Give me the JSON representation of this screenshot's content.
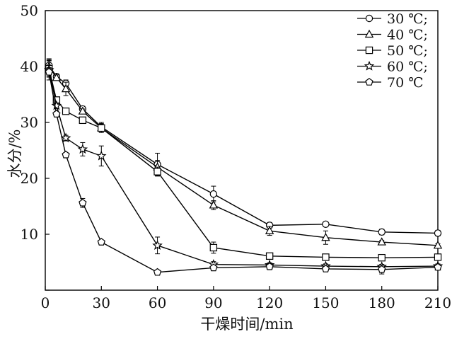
{
  "chart_data": {
    "type": "line",
    "title": "",
    "xlabel": "干燥时间/min",
    "ylabel": "水分/%",
    "xlim": [
      0,
      210
    ],
    "ylim": [
      0,
      50
    ],
    "xticks": [
      0,
      30,
      60,
      90,
      120,
      150,
      180,
      210
    ],
    "yticks": [
      0,
      10,
      20,
      30,
      40,
      50
    ],
    "grid": false,
    "legend_position": "top-right",
    "error_bars": true,
    "series": [
      {
        "name": "30 ℃;",
        "marker": "circle",
        "x": [
          2,
          6,
          11,
          20,
          30,
          60,
          90,
          120,
          150,
          180,
          210
        ],
        "y": [
          40.2,
          38.2,
          37.0,
          32.4,
          29.2,
          22.5,
          17.2,
          11.6,
          11.8,
          10.4,
          10.2
        ],
        "err": [
          1.2,
          0.5,
          0.6,
          0.5,
          0.8,
          2.0,
          1.4,
          0.5,
          0.3,
          0.5,
          0.5
        ]
      },
      {
        "name": "40 ℃;",
        "marker": "triangle",
        "x": [
          2,
          6,
          11,
          20,
          30,
          60,
          90,
          120,
          150,
          180,
          210
        ],
        "y": [
          40.0,
          38.0,
          36.0,
          32.0,
          29.0,
          22.0,
          15.2,
          10.6,
          9.4,
          8.6,
          8.0
        ],
        "err": [
          1.0,
          0.5,
          1.2,
          0.4,
          0.6,
          1.2,
          0.8,
          0.8,
          1.2,
          0.3,
          0.3
        ]
      },
      {
        "name": "50 ℃;",
        "marker": "square",
        "x": [
          2,
          6,
          11,
          20,
          30,
          60,
          90,
          120,
          150,
          180,
          210
        ],
        "y": [
          39.6,
          34.0,
          32.0,
          30.4,
          29.0,
          21.2,
          7.6,
          6.1,
          5.9,
          5.8,
          5.9
        ],
        "err": [
          1.5,
          0.5,
          0.5,
          0.5,
          0.8,
          0.8,
          1.0,
          0.4,
          0.3,
          0.3,
          0.3
        ]
      },
      {
        "name": "60 ℃;",
        "marker": "star",
        "x": [
          2,
          6,
          11,
          20,
          30,
          60,
          90,
          120,
          150,
          180,
          210
        ],
        "y": [
          39.4,
          33.0,
          27.2,
          25.2,
          24.0,
          8.0,
          4.6,
          4.5,
          4.3,
          4.2,
          4.3
        ],
        "err": [
          1.8,
          0.5,
          0.5,
          1.2,
          1.8,
          1.5,
          0.5,
          0.4,
          0.4,
          0.4,
          0.4
        ]
      },
      {
        "name": "70 ℃",
        "marker": "pentagon",
        "x": [
          2,
          6,
          11,
          20,
          30,
          60,
          90,
          120,
          150,
          180,
          210
        ],
        "y": [
          39.0,
          31.5,
          24.2,
          15.6,
          8.6,
          3.2,
          4.0,
          4.2,
          3.8,
          3.7,
          4.1
        ],
        "err": [
          0.8,
          0.5,
          0.4,
          0.8,
          0.3,
          0.3,
          0.4,
          0.5,
          0.5,
          0.8,
          0.4
        ]
      }
    ]
  }
}
